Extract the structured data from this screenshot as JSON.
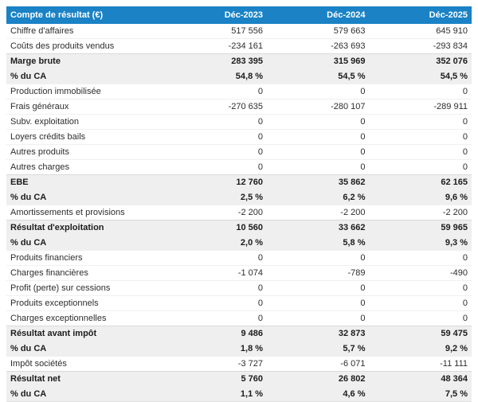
{
  "colors": {
    "header_bg": "#1a82c5",
    "header_text": "#ffffff",
    "total_row_bg": "#efefef",
    "text": "#2d2d2d"
  },
  "chart_data": {
    "type": "table",
    "title": "Compte de résultat (€)",
    "columns": [
      "Déc-2023",
      "Déc-2024",
      "Déc-2025"
    ],
    "rows": [
      {
        "label": "Chiffre d'affaires",
        "values": [
          "517 556",
          "579 663",
          "645 910"
        ],
        "style": "normal"
      },
      {
        "label": "Coûts des produits vendus",
        "values": [
          "-234 161",
          "-263 693",
          "-293 834"
        ],
        "style": "normal"
      },
      {
        "label": "Marge brute",
        "values": [
          "283 395",
          "315 969",
          "352 076"
        ],
        "style": "total"
      },
      {
        "label": "% du CA",
        "values": [
          "54,8 %",
          "54,5 %",
          "54,5 %"
        ],
        "style": "total"
      },
      {
        "label": "Production immobilisée",
        "values": [
          "0",
          "0",
          "0"
        ],
        "style": "normal"
      },
      {
        "label": "Frais généraux",
        "values": [
          "-270 635",
          "-280 107",
          "-289 911"
        ],
        "style": "normal"
      },
      {
        "label": "Subv. exploitation",
        "values": [
          "0",
          "0",
          "0"
        ],
        "style": "normal"
      },
      {
        "label": "Loyers crédits bails",
        "values": [
          "0",
          "0",
          "0"
        ],
        "style": "normal"
      },
      {
        "label": "Autres produits",
        "values": [
          "0",
          "0",
          "0"
        ],
        "style": "normal"
      },
      {
        "label": "Autres charges",
        "values": [
          "0",
          "0",
          "0"
        ],
        "style": "normal"
      },
      {
        "label": "EBE",
        "values": [
          "12 760",
          "35 862",
          "62 165"
        ],
        "style": "total"
      },
      {
        "label": "% du CA",
        "values": [
          "2,5 %",
          "6,2 %",
          "9,6 %"
        ],
        "style": "total"
      },
      {
        "label": "Amortissements et provisions",
        "values": [
          "-2 200",
          "-2 200",
          "-2 200"
        ],
        "style": "normal"
      },
      {
        "label": "Résultat d'exploitation",
        "values": [
          "10 560",
          "33 662",
          "59 965"
        ],
        "style": "total"
      },
      {
        "label": "% du CA",
        "values": [
          "2,0 %",
          "5,8 %",
          "9,3 %"
        ],
        "style": "total"
      },
      {
        "label": "Produits financiers",
        "values": [
          "0",
          "0",
          "0"
        ],
        "style": "normal"
      },
      {
        "label": "Charges financières",
        "values": [
          "-1 074",
          "-789",
          "-490"
        ],
        "style": "normal"
      },
      {
        "label": "Profit (perte) sur cessions",
        "values": [
          "0",
          "0",
          "0"
        ],
        "style": "normal"
      },
      {
        "label": "Produits exceptionnels",
        "values": [
          "0",
          "0",
          "0"
        ],
        "style": "normal"
      },
      {
        "label": "Charges exceptionnelles",
        "values": [
          "0",
          "0",
          "0"
        ],
        "style": "normal"
      },
      {
        "label": "Résultat avant impôt",
        "values": [
          "9 486",
          "32 873",
          "59 475"
        ],
        "style": "total"
      },
      {
        "label": "% du CA",
        "values": [
          "1,8 %",
          "5,7 %",
          "9,2 %"
        ],
        "style": "total"
      },
      {
        "label": "Impôt sociétés",
        "values": [
          "-3 727",
          "-6 071",
          "-11 111"
        ],
        "style": "normal"
      },
      {
        "label": "Résultat net",
        "values": [
          "5 760",
          "26 802",
          "48 364"
        ],
        "style": "total"
      },
      {
        "label": "% du CA",
        "values": [
          "1,1 %",
          "4,6 %",
          "7,5 %"
        ],
        "style": "total"
      }
    ]
  }
}
